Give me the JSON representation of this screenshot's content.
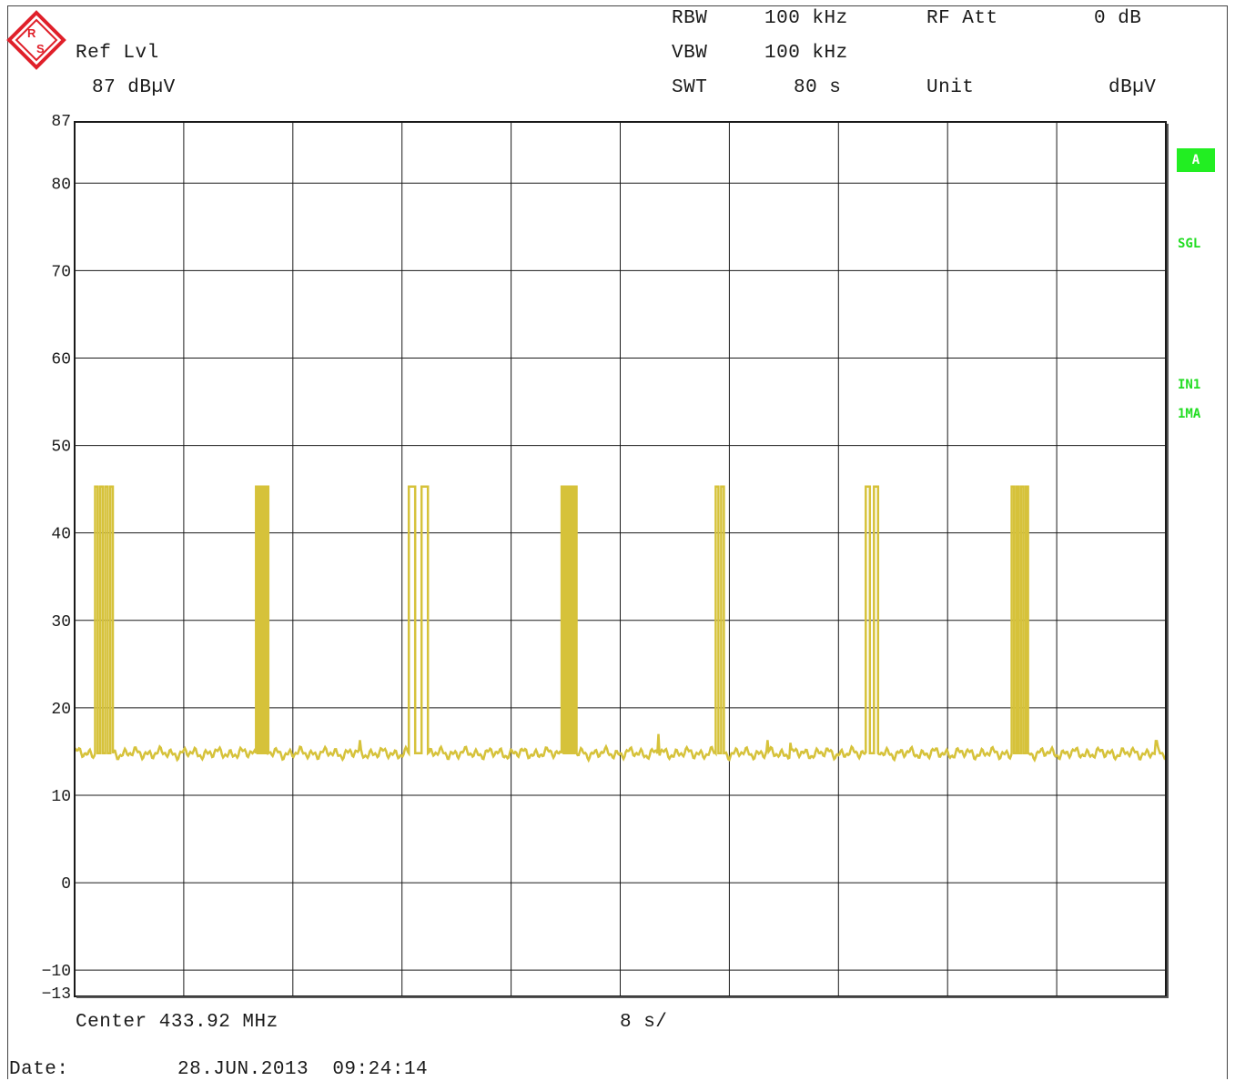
{
  "header": {
    "ref_lvl_label": "Ref Lvl",
    "ref_lvl_value": "87 dBµV",
    "rbw_label": "RBW",
    "rbw_value": "100 kHz",
    "vbw_label": "VBW",
    "vbw_value": "100 kHz",
    "swt_label": "SWT",
    "swt_value": "80 s",
    "rf_att_label": "RF Att",
    "rf_att_value": "0 dB",
    "unit_label": "Unit",
    "unit_value": "dBµV"
  },
  "side_labels": {
    "trace": "A",
    "sgl": "SGL",
    "in1": "IN1",
    "ma": "1MA"
  },
  "footer": {
    "center": "Center 433.92 MHz",
    "time_div": "8 s/",
    "date_label": "Date:",
    "date_value": "28.JUN.2013  09:24:14"
  },
  "colors": {
    "trace": "#d6c23a",
    "grid": "#1a1a1a",
    "status_green": "#22dd22"
  },
  "chart_data": {
    "type": "line",
    "title": "",
    "xlabel": "",
    "ylabel": "",
    "x_unit": "s",
    "xlim": [
      0,
      80
    ],
    "ylim": [
      -13,
      87
    ],
    "y_ticks": [
      87,
      80,
      70,
      60,
      50,
      40,
      30,
      20,
      10,
      0,
      -10,
      -13
    ],
    "grid": true,
    "baseline_level": 14.8,
    "pulse_level": 45.3,
    "series": [
      {
        "pulses": [
          {
            "start": 1.5,
            "end": 2.8,
            "lines": 4
          },
          {
            "start": 13.3,
            "end": 14.2,
            "lines": 5
          },
          {
            "start": 24.5,
            "end": 25.9,
            "lines": 2
          },
          {
            "start": 35.7,
            "end": 36.8,
            "lines": 4
          },
          {
            "start": 47.0,
            "end": 47.6,
            "lines": 2
          },
          {
            "start": 58.0,
            "end": 58.9,
            "lines": 2
          },
          {
            "start": 68.7,
            "end": 69.9,
            "lines": 4
          }
        ],
        "spikes": [
          {
            "x": 20.9,
            "y": 16.3
          },
          {
            "x": 42.8,
            "y": 17.0
          },
          {
            "x": 50.8,
            "y": 16.3
          },
          {
            "x": 52.5,
            "y": 16.0
          },
          {
            "x": 79.3,
            "y": 16.2
          }
        ]
      }
    ]
  }
}
